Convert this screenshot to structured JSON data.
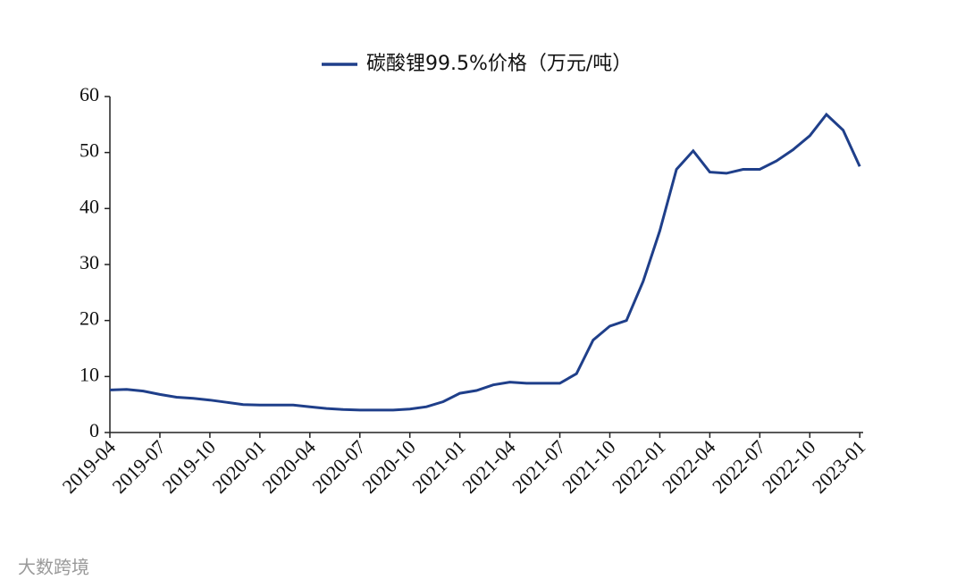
{
  "chart_data": {
    "type": "line",
    "legend_position": "top",
    "x": [
      "2019-04",
      "2019-05",
      "2019-06",
      "2019-07",
      "2019-08",
      "2019-09",
      "2019-10",
      "2019-11",
      "2019-12",
      "2020-01",
      "2020-02",
      "2020-03",
      "2020-04",
      "2020-05",
      "2020-06",
      "2020-07",
      "2020-08",
      "2020-09",
      "2020-10",
      "2020-11",
      "2020-12",
      "2021-01",
      "2021-02",
      "2021-03",
      "2021-04",
      "2021-05",
      "2021-06",
      "2021-07",
      "2021-08",
      "2021-09",
      "2021-10",
      "2021-11",
      "2021-12",
      "2022-01",
      "2022-02",
      "2022-03",
      "2022-04",
      "2022-05",
      "2022-06",
      "2022-07",
      "2022-08",
      "2022-09",
      "2022-10",
      "2022-11",
      "2022-12",
      "2023-01"
    ],
    "series": [
      {
        "name": "碳酸锂99.5%价格（万元/吨）",
        "color": "#1f3f8a",
        "values": [
          7.6,
          7.7,
          7.4,
          6.8,
          6.3,
          6.1,
          5.8,
          5.4,
          5.0,
          4.9,
          4.9,
          4.9,
          4.6,
          4.3,
          4.1,
          4.0,
          4.0,
          4.0,
          4.2,
          4.6,
          5.5,
          7.0,
          7.5,
          8.5,
          9.0,
          8.8,
          8.8,
          8.8,
          10.5,
          16.5,
          19.0,
          20.0,
          27.0,
          36.0,
          47.0,
          50.3,
          46.5,
          46.3,
          47.0,
          47.0,
          48.5,
          50.5,
          53.0,
          56.8,
          54.0,
          47.5
        ]
      }
    ],
    "xticks": [
      "2019-04",
      "2019-07",
      "2019-10",
      "2020-01",
      "2020-04",
      "2020-07",
      "2020-10",
      "2021-01",
      "2021-04",
      "2021-07",
      "2021-10",
      "2022-01",
      "2022-04",
      "2022-07",
      "2022-10",
      "2023-01"
    ],
    "ylim": [
      0,
      60
    ],
    "yticks": [
      0,
      10,
      20,
      30,
      40,
      50,
      60
    ],
    "grid": false
  },
  "watermark": "大数跨境"
}
